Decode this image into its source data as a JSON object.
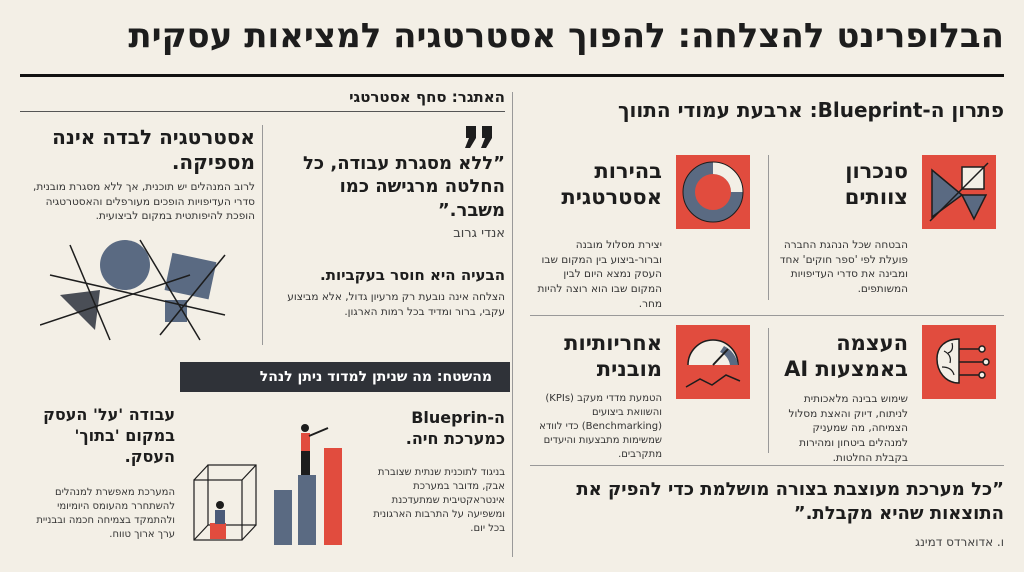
{
  "header": {
    "title": "הבלופרינט להצלחה: להפוך אסטרטגיה למציאות עסקית"
  },
  "challenge": {
    "heading": "האתגר: סחף אסטרטגי",
    "quote": {
      "text": "”ללא מסגרת עבודה, כל החלטה מרגישה כמו משבר.”",
      "author": "אנדי גרוב"
    },
    "problem": {
      "title": "הבעיה היא חוסר בעקביות.",
      "text": "הצלחה אינה נובעת רק מרעיון גדול, אלא מביצוע עקבי, ברור ומדיד בכל רמות הארגון."
    },
    "insufficient": {
      "title": "אסטרטגיה לבדה אינה מספיקה.",
      "text": "לרוב המנהלים יש תוכנית, אך ללא מסגרת מובנית, סדרי העדיפויות הופכים מעורפלים והאסטרטגיה הופכת להיפותטית במקום לביצועית."
    }
  },
  "field": {
    "banner": "מהשטח: מה שניתן למדוד ניתן לנהל",
    "outside": {
      "title": "עבודה 'על' העסק במקום 'בתוך' העסק.",
      "text": "המערכת מאפשרת למנהלים להשתחרר מהעומס היומיומי ולהתמקד בצמיחה חכמה ובבניית ערך ארוך טווח."
    },
    "living": {
      "title": "ה-Blueprin כמערכת חיה.",
      "text": "בניגוד לתוכנית שנתית שצוברת אבק, מדובר במערכת אינטראקטיבית שמתעדכנת ומשפיעה על התרבות הארגונית בכל יום."
    }
  },
  "solution": {
    "heading": "פתרון ה-Blueprint: ארבעת עמודי התווך",
    "pillars": [
      {
        "title": "סנכרון צוותים",
        "text": "הבטחה שכל הנהגת החברה פועלת לפי 'ספר חוקים' אחד ומבינה את סדרי העדיפויות המשותפים."
      },
      {
        "title": "בהירות אסטרטגית",
        "text": "יצירת מסלול מובנה וברור-ביצוע בין המקום שבו העסק נמצא היום לבין המקום שבו הוא רוצה להיות מחר."
      },
      {
        "title": "העצמה באמצעות AI",
        "text": "שימוש בבינה מלאכותית לניתוח, דיוק והאצת מסלול הצמיחה, מה שמעניק למנהלים ביטחון ומהירות בקבלת החלטות."
      },
      {
        "title": "אחריותיות מובנית",
        "text": "הטמעת מדדי מעקב (KPIs) והשוואת ביצועים (Benchmarking) כדי לוודא שמשימות מתבצעות והיעדים מתקרבים."
      }
    ],
    "quote": {
      "text": "”כל מערכת מעוצבת בצורה מושלמת כדי להפיק את התוצאות שהיא מקבלת.”",
      "author": "ו. אדוארדס דמינג"
    }
  }
}
